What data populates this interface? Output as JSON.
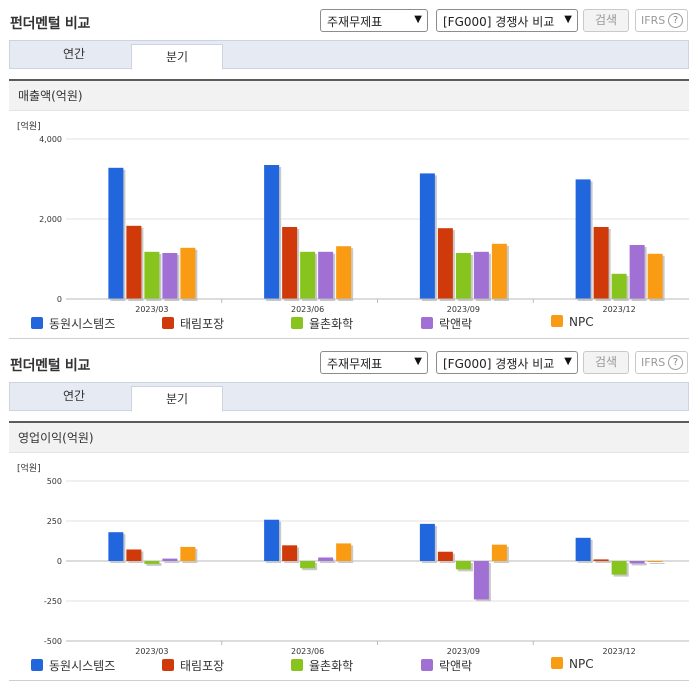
{
  "header": {
    "title": "펀더멘털 비교",
    "select_stmt": "주재무제표",
    "select_peer": "[FG000] 경쟁사 비교",
    "search_label": "검색",
    "ifrs_label": "IFRS",
    "help_label": "?"
  },
  "tabs": [
    {
      "label": "연간",
      "active": false
    },
    {
      "label": "분기",
      "active": true
    }
  ],
  "colors": {
    "동원시스템즈": "#2266dd",
    "태림포장": "#d03a0a",
    "율촌화학": "#88c41e",
    "락앤락": "#a070d4",
    "NPC": "#f99c14"
  },
  "chart_data": [
    {
      "type": "bar",
      "title": "매출액(억원)",
      "unit_label": "[억원]",
      "categories": [
        "2023/03",
        "2023/06",
        "2023/09",
        "2023/12"
      ],
      "ylim": [
        0,
        4000
      ],
      "yticks": [
        0,
        2000,
        4000
      ],
      "ytick_labels": [
        "0",
        "2,000",
        "4,000"
      ],
      "grid": true,
      "legend_position": "bottom",
      "series": [
        {
          "name": "동원시스템즈",
          "color": "#2266dd",
          "values": [
            3280,
            3350,
            3140,
            2990
          ]
        },
        {
          "name": "태림포장",
          "color": "#d03a0a",
          "values": [
            1830,
            1800,
            1770,
            1800
          ]
        },
        {
          "name": "율촌화학",
          "color": "#88c41e",
          "values": [
            1180,
            1180,
            1150,
            630
          ]
        },
        {
          "name": "락앤락",
          "color": "#a070d4",
          "values": [
            1150,
            1180,
            1180,
            1350
          ]
        },
        {
          "name": "NPC",
          "color": "#f99c14",
          "values": [
            1280,
            1320,
            1380,
            1130
          ]
        }
      ]
    },
    {
      "type": "bar",
      "title": "영업이익(억원)",
      "unit_label": "[억원]",
      "categories": [
        "2023/03",
        "2023/06",
        "2023/09",
        "2023/12"
      ],
      "ylim": [
        -500,
        500
      ],
      "yticks": [
        -500,
        -250,
        0,
        250,
        500
      ],
      "ytick_labels": [
        "-500",
        "-250",
        "0",
        "250",
        "500"
      ],
      "grid": true,
      "legend_position": "bottom",
      "series": [
        {
          "name": "동원시스템즈",
          "color": "#2266dd",
          "values": [
            180,
            258,
            232,
            145
          ]
        },
        {
          "name": "태림포장",
          "color": "#d03a0a",
          "values": [
            72,
            98,
            58,
            10
          ]
        },
        {
          "name": "율촌화학",
          "color": "#88c41e",
          "values": [
            -18,
            -45,
            -52,
            -85
          ]
        },
        {
          "name": "락앤락",
          "color": "#a070d4",
          "values": [
            15,
            22,
            -240,
            -15
          ]
        },
        {
          "name": "NPC",
          "color": "#f99c14",
          "values": [
            88,
            110,
            102,
            0
          ]
        }
      ]
    }
  ]
}
